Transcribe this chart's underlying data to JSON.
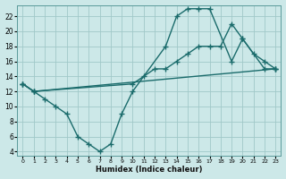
{
  "xlabel": "Humidex (Indice chaleur)",
  "bg_color": "#cce8e8",
  "grid_color": "#a0c8c8",
  "line_color": "#1a6b6b",
  "xlim": [
    -0.5,
    23.5
  ],
  "ylim": [
    3.5,
    23.5
  ],
  "xticks": [
    0,
    1,
    2,
    3,
    4,
    5,
    6,
    7,
    8,
    9,
    10,
    11,
    12,
    13,
    14,
    15,
    16,
    17,
    18,
    19,
    20,
    21,
    22,
    23
  ],
  "yticks": [
    4,
    6,
    8,
    10,
    12,
    14,
    16,
    18,
    20,
    22
  ],
  "line1_x": [
    0,
    1,
    2,
    3,
    4,
    5,
    6,
    7,
    8,
    9,
    10,
    13,
    14,
    15,
    16,
    17,
    19,
    20,
    22,
    23
  ],
  "line1_y": [
    13,
    12,
    11,
    10,
    9,
    6,
    5,
    4,
    5,
    9,
    12,
    18,
    22,
    23,
    23,
    23,
    16,
    19,
    15,
    15
  ],
  "line2_x": [
    0,
    1,
    10,
    11,
    12,
    13,
    14,
    15,
    16,
    17,
    18,
    19,
    20,
    21,
    22,
    23
  ],
  "line2_y": [
    13,
    12,
    13,
    14,
    15,
    15,
    16,
    17,
    18,
    18,
    18,
    21,
    19,
    17,
    16,
    15
  ],
  "line3_x": [
    0,
    1,
    23
  ],
  "line3_y": [
    13,
    12,
    15
  ]
}
